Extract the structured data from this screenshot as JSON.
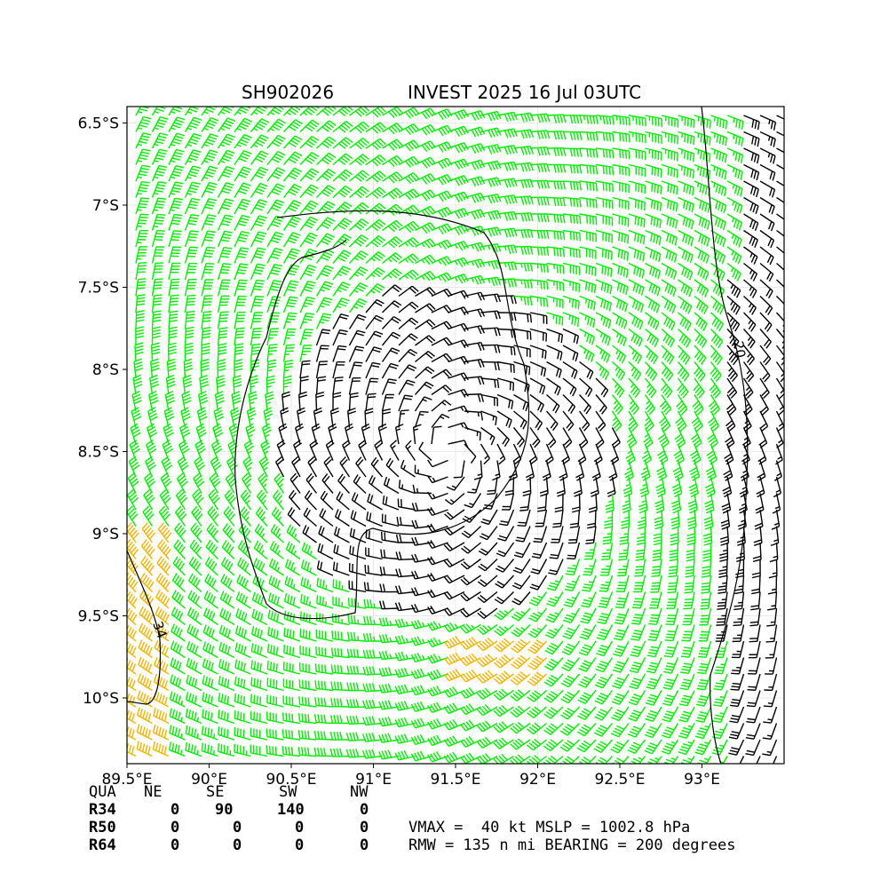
{
  "header": {
    "storm_id": "SH902026",
    "title": "INVEST 2025 16 Jul 03UTC"
  },
  "chart_data": {
    "type": "wind_barb_map",
    "title": "SH902026          INVEST 2025 16 Jul 03UTC",
    "xlim": [
      89.5,
      93.5
    ],
    "ylim": [
      -10.4,
      -6.4
    ],
    "x_ticks": [
      89.5,
      90.0,
      90.5,
      91.0,
      91.5,
      92.0,
      92.5,
      93.0
    ],
    "x_tick_labels": [
      "89.5°E",
      "90°E",
      "90.5°E",
      "91°E",
      "91.5°E",
      "92°E",
      "92.5°E",
      "93°E"
    ],
    "y_ticks": [
      -6.5,
      -7.0,
      -7.5,
      -8.0,
      -8.5,
      -9.0,
      -9.5,
      -10.0
    ],
    "y_tick_labels": [
      "6.5°S",
      "7°S",
      "7.5°S",
      "8°S",
      "8.5°S",
      "9°S",
      "9.5°S",
      "10°S"
    ],
    "grid": true,
    "center": {
      "lon": 91.45,
      "lat": -8.5
    },
    "barb_colors": {
      "below_34kt": "#000000",
      "34_to_50kt": "#00ee00",
      "above_50kt": "#f0b400"
    },
    "contour_labels": [
      "20",
      "34"
    ],
    "contour_color": "#000000",
    "map_background": "#ffffff"
  },
  "quadrant_table": {
    "headers": [
      "QUA",
      "NE",
      "SE",
      "SW",
      "NW"
    ],
    "rows": [
      {
        "label": "R34",
        "values": [
          "0",
          "90",
          "140",
          "0"
        ]
      },
      {
        "label": "R50",
        "values": [
          "0",
          "0",
          "0",
          "0"
        ]
      },
      {
        "label": "R64",
        "values": [
          "0",
          "0",
          "0",
          "0"
        ]
      }
    ]
  },
  "info": {
    "line1": "VMAX =  40 kt MSLP = 1002.8 hPa",
    "line2": "RMW = 135 n mi BEARING = 200 degrees"
  }
}
